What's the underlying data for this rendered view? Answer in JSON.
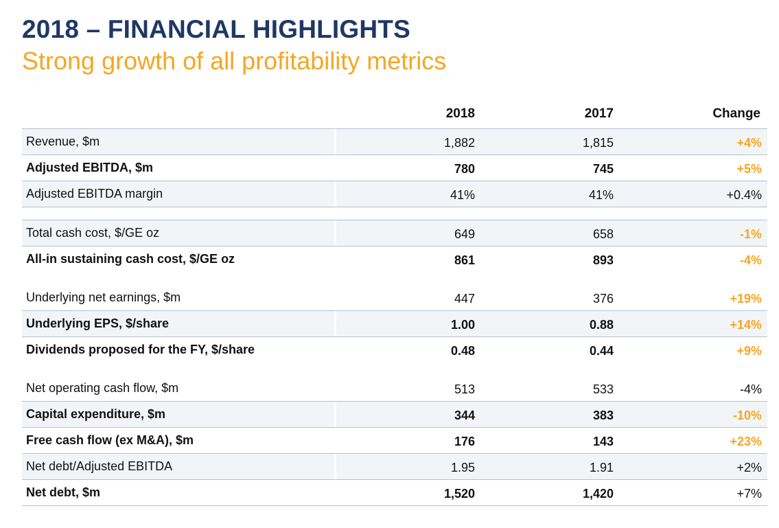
{
  "header": {
    "title": "2018 – FINANCIAL HIGHLIGHTS",
    "subtitle": "Strong growth of all profitability metrics"
  },
  "table": {
    "columns": [
      "2018",
      "2017",
      "Change"
    ],
    "rows": [
      {
        "label": "Revenue, $m",
        "v2018": "1,882",
        "v2017": "1,815",
        "change": "+4%"
      },
      {
        "label": "Adjusted EBITDA, $m",
        "v2018": "780",
        "v2017": "745",
        "change": "+5%"
      },
      {
        "label": "Adjusted EBITDA margin",
        "v2018": "41%",
        "v2017": "41%",
        "change": "+0.4%"
      },
      {
        "label": "Total cash cost, $/GE oz",
        "v2018": "649",
        "v2017": "658",
        "change": "-1%"
      },
      {
        "label": "All-in sustaining cash cost, $/GE oz",
        "v2018": "861",
        "v2017": "893",
        "change": "-4%"
      },
      {
        "label": "Underlying net earnings, $m",
        "v2018": "447",
        "v2017": "376",
        "change": "+19%"
      },
      {
        "label": "Underlying EPS, $/share",
        "v2018": "1.00",
        "v2017": "0.88",
        "change": "+14%"
      },
      {
        "label": "Dividends proposed for the FY, $/share",
        "v2018": "0.48",
        "v2017": "0.44",
        "change": "+9%"
      },
      {
        "label": "Net operating cash flow, $m",
        "v2018": "513",
        "v2017": "533",
        "change": "-4%"
      },
      {
        "label": "Capital expenditure, $m",
        "v2018": "344",
        "v2017": "383",
        "change": "-10%"
      },
      {
        "label": "Free cash flow (ex M&A), $m",
        "v2018": "176",
        "v2017": "143",
        "change": "+23%"
      },
      {
        "label": "Net debt/Adjusted EBITDA",
        "v2018": "1.95",
        "v2017": "1.91",
        "change": "+2%"
      },
      {
        "label": "Net debt, $m",
        "v2018": "1,520",
        "v2017": "1,420",
        "change": "+7%"
      }
    ]
  },
  "colors": {
    "title": "#1f3864",
    "accent": "#f5a623",
    "row_shade": "#f2f5f8",
    "rule": "#b7c0cc"
  }
}
